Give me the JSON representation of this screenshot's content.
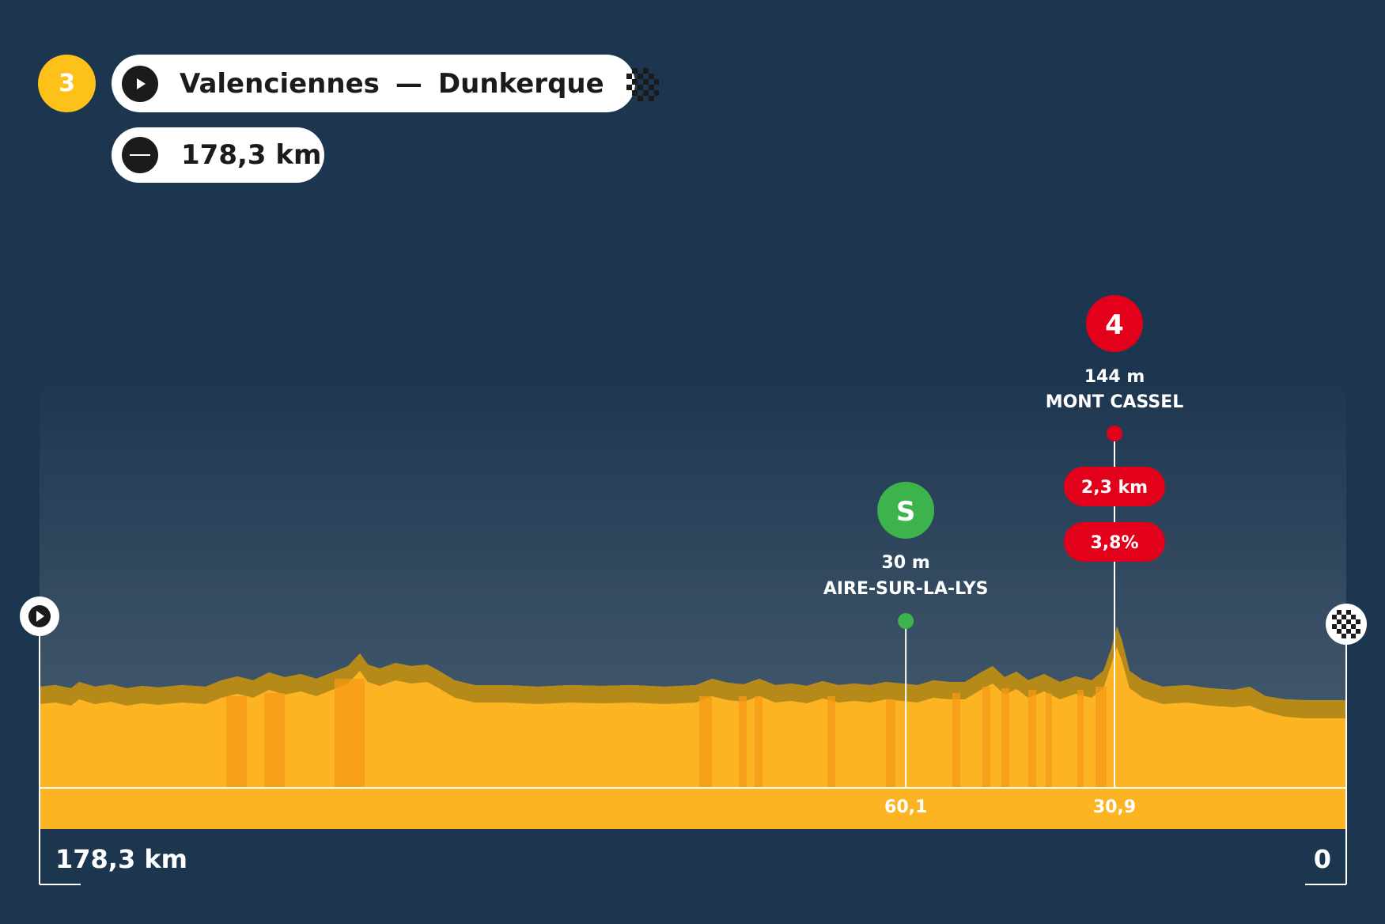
{
  "header": {
    "stage_number": "3",
    "start": "Valenciennes",
    "separator": "—",
    "finish": "Dunkerque",
    "distance": "178,3 km",
    "start_icon": "play-icon",
    "finish_icon": "checkered-flag-icon",
    "profile_icon": "flat-stage-icon"
  },
  "points": [
    {
      "type": "sprint",
      "badge": "S",
      "altitude": "30 m",
      "name": "AIRE-SUR-LA-LYS",
      "km_to_go_label": "60,1",
      "km_to_go": 60.1,
      "color": "#3cb44b"
    },
    {
      "type": "climb",
      "badge": "4",
      "altitude": "144 m",
      "name": "MONT CASSEL",
      "km_to_go_label": "30,9",
      "km_to_go": 30.9,
      "climb_length": "2,3 km",
      "climb_gradient": "3,8%",
      "color": "#e2001a"
    }
  ],
  "axis": {
    "start_label": "178,3 km",
    "end_label": "0",
    "total_km": 178.3
  },
  "colors": {
    "background": "#1d364f",
    "terrain": "#fcb422",
    "terrain_top": "#b58a18",
    "stage_badge": "#fcc21a"
  }
}
